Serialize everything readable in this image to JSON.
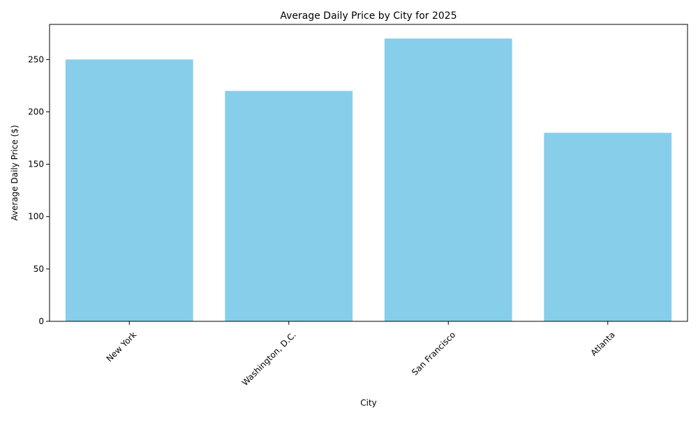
{
  "chart_data": {
    "type": "bar",
    "title": "Average Daily Price by City for 2025",
    "xlabel": "City",
    "ylabel": "Average Daily Price ($)",
    "categories": [
      "New York",
      "Washington, D.C.",
      "San Francisco",
      "Atlanta"
    ],
    "values": [
      250,
      220,
      270,
      180
    ],
    "ylim": [
      0,
      283.5
    ],
    "yticks": [
      0,
      50,
      100,
      150,
      200,
      250
    ],
    "bar_color": "#87CEEB",
    "x_tick_rotation": 45,
    "grid": false,
    "legend": "none"
  }
}
